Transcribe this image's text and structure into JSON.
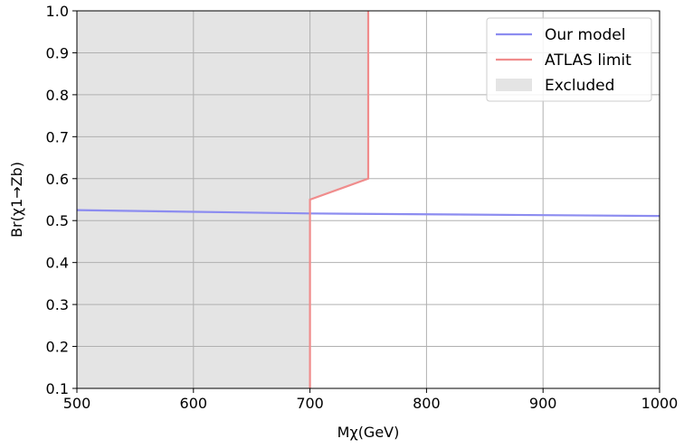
{
  "chart_data": {
    "type": "line",
    "title": "",
    "xlabel": "Mχ(GeV)",
    "ylabel": "Br(χ1→Zb)",
    "xlim": [
      500,
      1000
    ],
    "ylim": [
      0.1,
      1.0
    ],
    "xticks": [
      500,
      600,
      700,
      800,
      900,
      1000
    ],
    "yticks": [
      0.1,
      0.2,
      0.3,
      0.4,
      0.5,
      0.6,
      0.7,
      0.8,
      0.9,
      1.0
    ],
    "xtick_labels": [
      "500",
      "600",
      "700",
      "800",
      "900",
      "1000"
    ],
    "ytick_labels": [
      "0.1",
      "0.2",
      "0.3",
      "0.4",
      "0.5",
      "0.6",
      "0.7",
      "0.8",
      "0.9",
      "1.0"
    ],
    "grid": true,
    "legend_position": "top-right",
    "series": [
      {
        "name": "Our model",
        "color": "#8c8cf0",
        "x": [
          500,
          600,
          700,
          800,
          900,
          1000
        ],
        "y": [
          0.525,
          0.521,
          0.517,
          0.515,
          0.513,
          0.511
        ]
      },
      {
        "name": "ATLAS limit",
        "color": "#f08c8c",
        "x": [
          700,
          700,
          750,
          750
        ],
        "y": [
          0.1,
          0.55,
          0.6,
          1.0
        ]
      }
    ],
    "excluded_region": {
      "name": "Excluded",
      "color": "#e4e4e4",
      "x": [
        500,
        700,
        700,
        750,
        750,
        500
      ],
      "y": [
        0.1,
        0.1,
        0.55,
        0.6,
        1.0,
        1.0
      ]
    }
  }
}
